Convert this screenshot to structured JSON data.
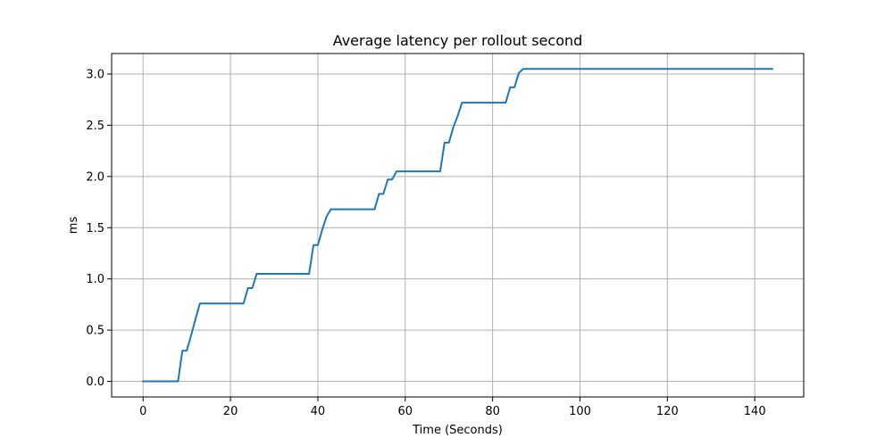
{
  "chart_data": {
    "type": "line",
    "title": "Average latency per rollout second",
    "xlabel": "Time (Seconds)",
    "ylabel": "ms",
    "xlim": [
      -7.2,
      151.2
    ],
    "ylim": [
      -0.152,
      3.2
    ],
    "x_ticks": [
      0,
      20,
      40,
      60,
      80,
      100,
      120,
      140
    ],
    "y_ticks": [
      0.0,
      0.5,
      1.0,
      1.5,
      2.0,
      2.5,
      3.0
    ],
    "x_tick_labels": [
      "0",
      "20",
      "40",
      "60",
      "80",
      "100",
      "120",
      "140"
    ],
    "y_tick_labels": [
      "0.0",
      "0.5",
      "1.0",
      "1.5",
      "2.0",
      "2.5",
      "3.0"
    ],
    "grid": true,
    "line_color": "#1f77b4",
    "series": [
      {
        "x": [
          0,
          8,
          9,
          10,
          11,
          12,
          13,
          14,
          15,
          16,
          17,
          18,
          19,
          20,
          21,
          22,
          23,
          24,
          25,
          26,
          27,
          28,
          29,
          30,
          31,
          32,
          33,
          34,
          35,
          36,
          37,
          38,
          39,
          40,
          41,
          42,
          43,
          44,
          45,
          46,
          47,
          48,
          49,
          50,
          51,
          52,
          53,
          54,
          55,
          56,
          57,
          58,
          59,
          60,
          61,
          62,
          63,
          64,
          65,
          66,
          67,
          68,
          69,
          70,
          71,
          72,
          73,
          74,
          75,
          76,
          77,
          78,
          79,
          80,
          81,
          82,
          83,
          84,
          85,
          86,
          87,
          88,
          144
        ],
        "values": [
          0.0,
          0.0,
          0.3,
          0.3,
          0.45,
          0.61,
          0.76,
          0.76,
          0.76,
          0.76,
          0.76,
          0.76,
          0.76,
          0.76,
          0.76,
          0.76,
          0.76,
          0.91,
          0.91,
          1.05,
          1.05,
          1.05,
          1.05,
          1.05,
          1.05,
          1.05,
          1.05,
          1.05,
          1.05,
          1.05,
          1.05,
          1.05,
          1.33,
          1.33,
          1.48,
          1.61,
          1.68,
          1.68,
          1.68,
          1.68,
          1.68,
          1.68,
          1.68,
          1.68,
          1.68,
          1.68,
          1.68,
          1.83,
          1.83,
          1.97,
          1.97,
          2.05,
          2.05,
          2.05,
          2.05,
          2.05,
          2.05,
          2.05,
          2.05,
          2.05,
          2.05,
          2.05,
          2.33,
          2.33,
          2.48,
          2.59,
          2.72,
          2.72,
          2.72,
          2.72,
          2.72,
          2.72,
          2.72,
          2.72,
          2.72,
          2.72,
          2.72,
          2.87,
          2.87,
          3.01,
          3.05,
          3.05,
          3.05
        ]
      }
    ]
  }
}
